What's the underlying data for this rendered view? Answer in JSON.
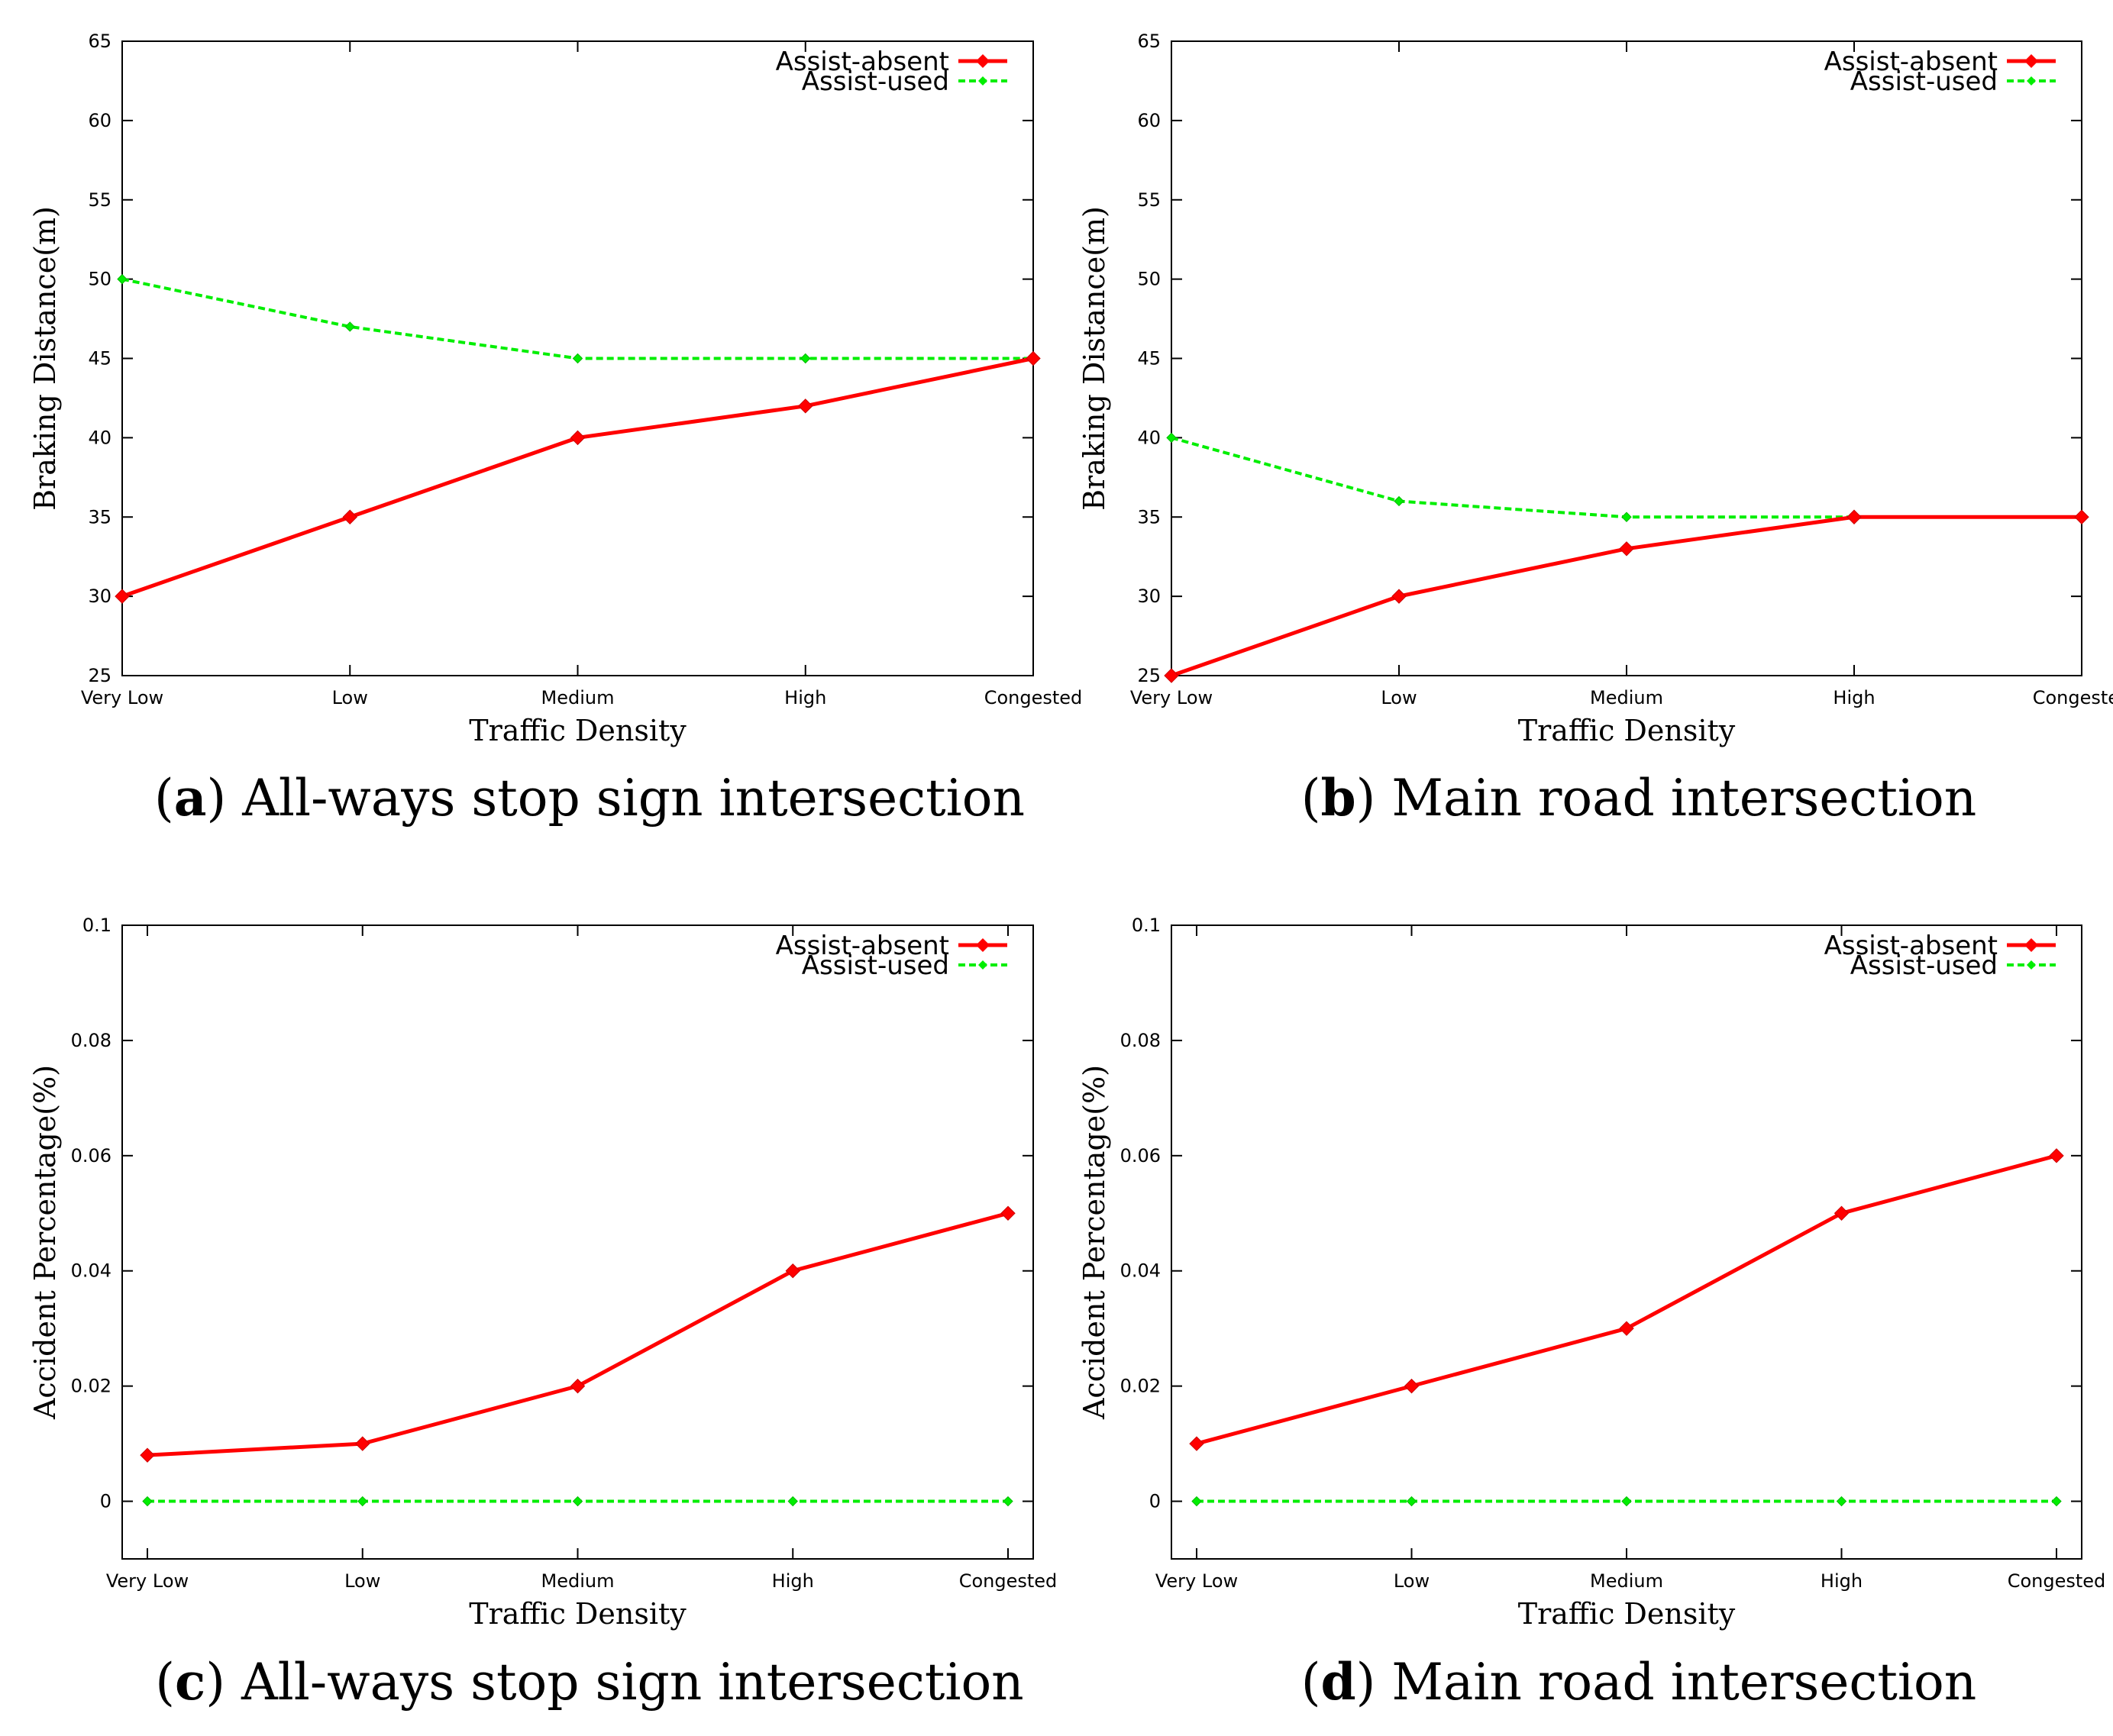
{
  "colors": {
    "absent": "#ff0000",
    "used": "#00ee00",
    "axis": "#000000"
  },
  "chart_data": [
    {
      "type": "line",
      "panel": "a",
      "caption_letter": "a",
      "caption": "All-ways stop sign intersection",
      "categories": [
        "Very Low",
        "Low",
        "Medium",
        "High",
        "Congested"
      ],
      "xlabel": "Traffic Density",
      "ylabel": "Braking Distance(m)",
      "ylim": [
        25,
        65
      ],
      "yticks": [
        "25",
        "30",
        "35",
        "40",
        "45",
        "50",
        "55",
        "60",
        "65"
      ],
      "ytick_values": [
        25,
        30,
        35,
        40,
        45,
        50,
        55,
        60,
        65
      ],
      "legend_position": "top-right",
      "series": [
        {
          "name": "Assist-absent",
          "values": [
            30,
            35,
            40,
            42,
            45
          ]
        },
        {
          "name": "Assist-used",
          "values": [
            50,
            47,
            45,
            45,
            45
          ]
        }
      ]
    },
    {
      "type": "line",
      "panel": "b",
      "caption_letter": "b",
      "caption": "Main road intersection",
      "categories": [
        "Very Low",
        "Low",
        "Medium",
        "High",
        "Congested"
      ],
      "xlabel": "Traffic Density",
      "ylabel": "Braking Distance(m)",
      "ylim": [
        25,
        65
      ],
      "yticks": [
        "25",
        "30",
        "35",
        "40",
        "45",
        "50",
        "55",
        "60",
        "65"
      ],
      "ytick_values": [
        25,
        30,
        35,
        40,
        45,
        50,
        55,
        60,
        65
      ],
      "legend_position": "top-right",
      "series": [
        {
          "name": "Assist-absent",
          "values": [
            25,
            30,
            33,
            35,
            35
          ]
        },
        {
          "name": "Assist-used",
          "values": [
            40,
            36,
            35,
            35,
            35
          ]
        }
      ]
    },
    {
      "type": "line",
      "panel": "c",
      "caption_letter": "c",
      "caption": "All-ways stop sign intersection",
      "categories": [
        "Very Low",
        "Low",
        "Medium",
        "High",
        "Congested"
      ],
      "xlabel": "Traffic Density",
      "ylabel": "Accident Percentage(%)",
      "ylim": [
        -0.01,
        0.1
      ],
      "yticks": [
        "0",
        "0.02",
        "0.04",
        "0.06",
        "0.08",
        "0.1"
      ],
      "ytick_values": [
        0,
        0.02,
        0.04,
        0.06,
        0.08,
        0.1
      ],
      "legend_position": "top-right",
      "series": [
        {
          "name": "Assist-absent",
          "values": [
            0.008,
            0.01,
            0.02,
            0.04,
            0.05
          ]
        },
        {
          "name": "Assist-used",
          "values": [
            0,
            0,
            0,
            0,
            0
          ]
        }
      ]
    },
    {
      "type": "line",
      "panel": "d",
      "caption_letter": "d",
      "caption": "Main road intersection",
      "categories": [
        "Very Low",
        "Low",
        "Medium",
        "High",
        "Congested"
      ],
      "xlabel": "Traffic Density",
      "ylabel": "Accident Percentage(%)",
      "ylim": [
        -0.01,
        0.1
      ],
      "yticks": [
        "0",
        "0.02",
        "0.04",
        "0.06",
        "0.08",
        "0.1"
      ],
      "ytick_values": [
        0,
        0.02,
        0.04,
        0.06,
        0.08,
        0.1
      ],
      "legend_position": "top-right",
      "series": [
        {
          "name": "Assist-absent",
          "values": [
            0.01,
            0.02,
            0.03,
            0.05,
            0.06
          ]
        },
        {
          "name": "Assist-used",
          "values": [
            0,
            0,
            0,
            0,
            0
          ]
        }
      ]
    }
  ]
}
